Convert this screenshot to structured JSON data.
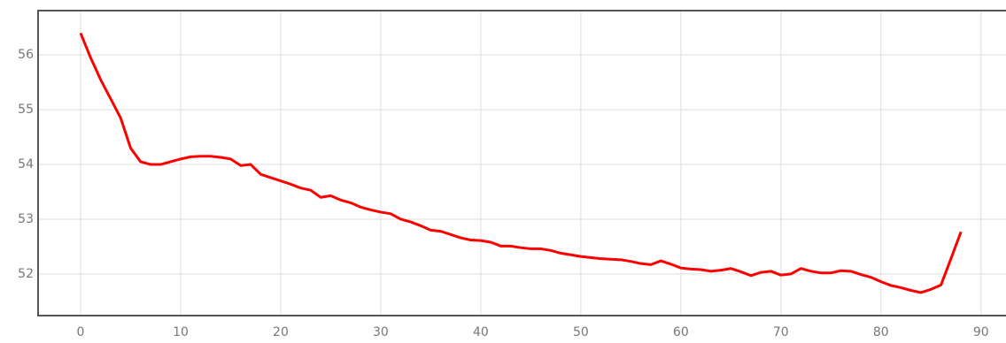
{
  "chart_data": {
    "type": "line",
    "x": [
      0,
      1,
      2,
      3,
      4,
      5,
      6,
      7,
      8,
      9,
      10,
      11,
      12,
      13,
      14,
      15,
      16,
      17,
      18,
      19,
      20,
      21,
      22,
      23,
      24,
      25,
      26,
      27,
      28,
      29,
      30,
      31,
      32,
      33,
      34,
      35,
      36,
      37,
      38,
      39,
      40,
      41,
      42,
      43,
      44,
      45,
      46,
      47,
      48,
      49,
      50,
      51,
      52,
      53,
      54,
      55,
      56,
      57,
      58,
      59,
      60,
      61,
      62,
      63,
      64,
      65,
      66,
      67,
      68,
      69,
      70,
      71,
      72,
      73,
      74,
      75,
      76,
      77,
      78,
      79,
      80,
      81,
      82,
      83,
      84,
      85,
      86,
      87,
      88
    ],
    "series": [
      {
        "color": "#ff0000",
        "values": [
          56.4,
          55.95,
          55.55,
          55.2,
          54.85,
          54.3,
          54.05,
          54.0,
          54.0,
          54.05,
          54.1,
          54.14,
          54.15,
          54.15,
          54.13,
          54.1,
          53.98,
          54.0,
          53.82,
          53.76,
          53.7,
          53.64,
          53.57,
          53.53,
          53.4,
          53.43,
          53.35,
          53.3,
          53.22,
          53.17,
          53.13,
          53.1,
          53.0,
          52.95,
          52.88,
          52.8,
          52.78,
          52.72,
          52.66,
          52.62,
          52.61,
          52.58,
          52.51,
          52.51,
          52.48,
          52.46,
          52.46,
          52.43,
          52.38,
          52.35,
          52.32,
          52.3,
          52.28,
          52.27,
          52.26,
          52.23,
          52.19,
          52.17,
          52.24,
          52.18,
          52.11,
          52.09,
          52.08,
          52.05,
          52.07,
          52.1,
          52.04,
          51.97,
          52.03,
          52.05,
          51.98,
          52.0,
          52.1,
          52.05,
          52.02,
          52.02,
          52.06,
          52.05,
          51.99,
          51.94,
          51.86,
          51.79,
          51.75,
          51.7,
          51.66,
          51.72,
          51.8,
          52.28,
          52.77
        ]
      }
    ],
    "xlim": [
      -4.25,
      92.5
    ],
    "ylim": [
      51.24,
      56.81
    ],
    "xticks": [
      0,
      10,
      20,
      30,
      40,
      50,
      60,
      70,
      80,
      90
    ],
    "yticks": [
      52,
      53,
      54,
      55,
      56
    ],
    "grid": true
  }
}
